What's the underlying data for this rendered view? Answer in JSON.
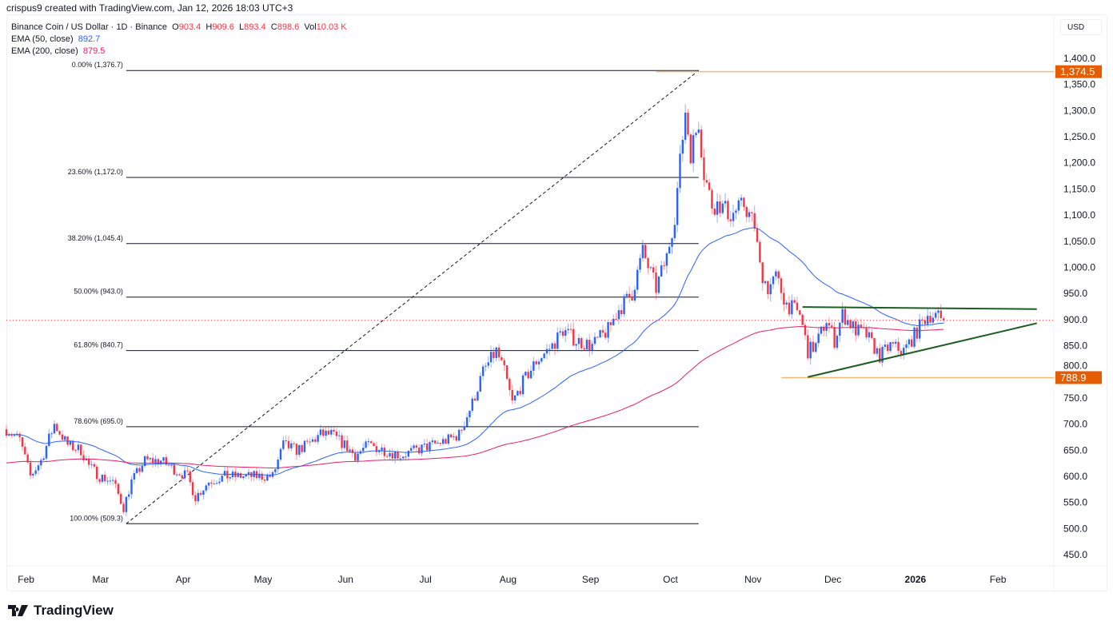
{
  "header": {
    "credit": "crispus9 created with TradingView.com, Jan 12, 2026 18:03 UTC+3"
  },
  "legend": {
    "symbol": "Binance Coin / US Dollar · 1D · Binance",
    "o_label": "O",
    "o": "903.4",
    "h_label": "H",
    "h": "909.6",
    "l_label": "L",
    "l": "893.4",
    "c_label": "C",
    "c": "898.6",
    "vol_label": "Vol",
    "vol": "10.03 K",
    "ema50_label": "EMA (50, close)",
    "ema50": "892.7",
    "ema200_label": "EMA (200, close)",
    "ema200": "879.5"
  },
  "currency": "USD",
  "logo": "TradingView",
  "colors": {
    "up": "#2962ff",
    "down": "#f23645",
    "ema50": "#2962ff",
    "ema200": "#e91e63",
    "fib": "#131722",
    "hline": "#f5b971",
    "badge": "#e65c00",
    "trend": "#1b5e20"
  },
  "chart_data": {
    "type": "candlestick",
    "title": "Binance Coin / US Dollar · 1D",
    "start_date": "2025-01-27",
    "ylim": [
      420,
      1420
    ],
    "y_ticks": [
      "1,400.0",
      "1,350.0",
      "1,300.0",
      "1,250.0",
      "1,200.0",
      "1,150.0",
      "1,100.0",
      "1,050.0",
      "1,000.0",
      "950.0",
      "900.0",
      "850.0",
      "800.0",
      "750.0",
      "700.0",
      "650.0",
      "600.0",
      "550.0",
      "500.0",
      "450.0"
    ],
    "y_tick_values": [
      1400,
      1350,
      1300,
      1250,
      1200,
      1150,
      1100,
      1050,
      1000,
      950,
      900,
      850,
      800,
      750,
      700,
      650,
      600,
      550,
      500,
      450
    ],
    "x_ticks": [
      {
        "label": "Feb",
        "day": 5
      },
      {
        "label": "Mar",
        "day": 33
      },
      {
        "label": "Apr",
        "day": 64
      },
      {
        "label": "May",
        "day": 94
      },
      {
        "label": "Jun",
        "day": 125
      },
      {
        "label": "Jul",
        "day": 155
      },
      {
        "label": "Aug",
        "day": 186
      },
      {
        "label": "Sep",
        "day": 217
      },
      {
        "label": "Oct",
        "day": 247
      },
      {
        "label": "Nov",
        "day": 278
      },
      {
        "label": "Dec",
        "day": 308
      },
      {
        "label": "2026",
        "day": 339
      },
      {
        "label": "Feb",
        "day": 370
      }
    ],
    "price_path_day_close": [
      [
        0,
        690
      ],
      [
        5,
        670
      ],
      [
        9,
        600
      ],
      [
        13,
        630
      ],
      [
        18,
        700
      ],
      [
        23,
        660
      ],
      [
        28,
        650
      ],
      [
        31,
        620
      ],
      [
        35,
        600
      ],
      [
        40,
        590
      ],
      [
        44,
        540
      ],
      [
        47,
        590
      ],
      [
        52,
        630
      ],
      [
        58,
        630
      ],
      [
        64,
        610
      ],
      [
        68,
        600
      ],
      [
        71,
        560
      ],
      [
        76,
        590
      ],
      [
        82,
        600
      ],
      [
        88,
        600
      ],
      [
        94,
        600
      ],
      [
        100,
        600
      ],
      [
        104,
        660
      ],
      [
        109,
        650
      ],
      [
        113,
        660
      ],
      [
        118,
        680
      ],
      [
        122,
        680
      ],
      [
        127,
        660
      ],
      [
        131,
        640
      ],
      [
        136,
        660
      ],
      [
        142,
        650
      ],
      [
        148,
        640
      ],
      [
        154,
        650
      ],
      [
        160,
        660
      ],
      [
        166,
        670
      ],
      [
        170,
        680
      ],
      [
        175,
        740
      ],
      [
        179,
        800
      ],
      [
        184,
        840
      ],
      [
        187,
        800
      ],
      [
        190,
        740
      ],
      [
        194,
        780
      ],
      [
        199,
        820
      ],
      [
        205,
        850
      ],
      [
        209,
        880
      ],
      [
        214,
        860
      ],
      [
        220,
        850
      ],
      [
        226,
        880
      ],
      [
        230,
        920
      ],
      [
        235,
        950
      ],
      [
        239,
        1030
      ],
      [
        244,
        960
      ],
      [
        248,
        1020
      ],
      [
        251,
        1100
      ],
      [
        253,
        1200
      ],
      [
        255,
        1300
      ],
      [
        257,
        1220
      ],
      [
        260,
        1280
      ],
      [
        262,
        1180
      ],
      [
        265,
        1120
      ],
      [
        268,
        1120
      ],
      [
        272,
        1100
      ],
      [
        277,
        1120
      ],
      [
        281,
        1080
      ],
      [
        283,
        1000
      ],
      [
        286,
        960
      ],
      [
        289,
        980
      ],
      [
        293,
        930
      ],
      [
        298,
        910
      ],
      [
        301,
        840
      ],
      [
        304,
        850
      ],
      [
        308,
        900
      ],
      [
        311,
        860
      ],
      [
        314,
        910
      ],
      [
        319,
        880
      ],
      [
        323,
        870
      ],
      [
        328,
        830
      ],
      [
        332,
        850
      ],
      [
        337,
        840
      ],
      [
        341,
        870
      ],
      [
        346,
        910
      ],
      [
        350,
        905
      ],
      [
        352,
        898.6
      ]
    ],
    "ema_seeds": {
      "ema50": 680,
      "ema200": 625
    },
    "fib": {
      "start_day": 45,
      "end_day": 260,
      "levels": [
        {
          "label": "0.00% (1,376.7)",
          "price": 1376.7
        },
        {
          "label": "23.60% (1,172.0)",
          "price": 1172.0
        },
        {
          "label": "38.20% (1,045.4)",
          "price": 1045.4
        },
        {
          "label": "50.00% (943.0)",
          "price": 943.0
        },
        {
          "label": "61.80% (840.7)",
          "price": 840.7
        },
        {
          "label": "78.60% (695.0)",
          "price": 695.0
        },
        {
          "label": "100.00% (509.3)",
          "price": 509.3
        }
      ]
    },
    "horizontal_levels": [
      {
        "label": "1,374.5",
        "price": 1374.5,
        "from_day": 244
      },
      {
        "label": "788.9",
        "price": 788.9,
        "from_day": 291
      }
    ],
    "trendlines": [
      {
        "from": [
          299,
          924
        ],
        "to": [
          387,
          920
        ]
      },
      {
        "from": [
          301,
          790
        ],
        "to": [
          387,
          893
        ]
      }
    ],
    "last_price": 898.6
  }
}
